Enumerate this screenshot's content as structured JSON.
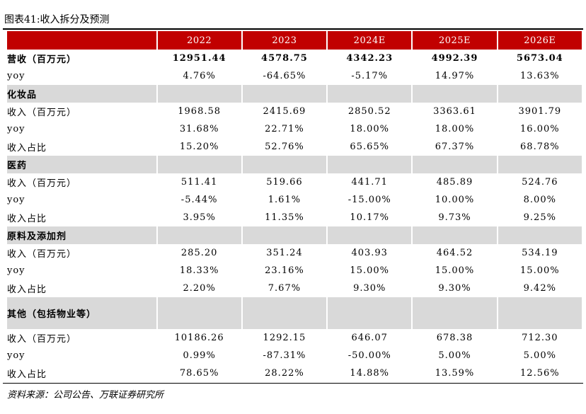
{
  "title": "图表41:收入拆分及预测",
  "header": [
    "",
    "2022",
    "2023",
    "2024E",
    "2025E",
    "2026E"
  ],
  "revenue": {
    "label": "营收（百万元）",
    "values": [
      "12951.44",
      "4578.75",
      "4342.23",
      "4992.39",
      "5673.04"
    ],
    "yoy_label": "yoy",
    "yoy": [
      "4.76%",
      "-64.65%",
      "-5.17%",
      "14.97%",
      "13.63%"
    ]
  },
  "segments": [
    {
      "name": "化妆品",
      "rows": [
        {
          "label": "收入（百万元）",
          "values": [
            "1968.58",
            "2415.69",
            "2850.52",
            "3363.61",
            "3901.79"
          ]
        },
        {
          "label": "yoy",
          "values": [
            "31.68%",
            "22.71%",
            "18.00%",
            "18.00%",
            "16.00%"
          ]
        },
        {
          "label": "收入占比",
          "values": [
            "15.20%",
            "52.76%",
            "65.65%",
            "67.37%",
            "68.78%"
          ]
        }
      ]
    },
    {
      "name": "医药",
      "rows": [
        {
          "label": "收入（百万元）",
          "values": [
            "511.41",
            "519.66",
            "441.71",
            "485.89",
            "524.76"
          ]
        },
        {
          "label": "yoy",
          "values": [
            "-5.44%",
            "1.61%",
            "-15.00%",
            "10.00%",
            "8.00%"
          ]
        },
        {
          "label": "收入占比",
          "values": [
            "3.95%",
            "11.35%",
            "10.17%",
            "9.73%",
            "9.25%"
          ]
        }
      ]
    },
    {
      "name": "原料及添加剂",
      "rows": [
        {
          "label": "收入（百万元）",
          "values": [
            "285.20",
            "351.24",
            "403.93",
            "464.52",
            "534.19"
          ]
        },
        {
          "label": "yoy",
          "values": [
            "18.33%",
            "23.16%",
            "15.00%",
            "15.00%",
            "15.00%"
          ]
        },
        {
          "label": "收入占比",
          "values": [
            "2.20%",
            "7.67%",
            "9.30%",
            "9.30%",
            "9.42%"
          ]
        }
      ]
    },
    {
      "name": "其他（包括物业等）",
      "rows": [
        {
          "label": "收入（百万元）",
          "values": [
            "10186.26",
            "1292.15",
            "646.07",
            "678.38",
            "712.30"
          ]
        },
        {
          "label": "yoy",
          "values": [
            "0.99%",
            "-87.31%",
            "-50.00%",
            "5.00%",
            "5.00%"
          ]
        },
        {
          "label": "收入占比",
          "values": [
            "78.65%",
            "28.22%",
            "14.88%",
            "13.59%",
            "12.56%"
          ]
        }
      ]
    }
  ],
  "source": "资料来源：公司公告、万联证券研究所",
  "colors": {
    "header_bg": "#c10000",
    "header_text": "#ffffff",
    "section_bg": "#d9d9d9"
  }
}
